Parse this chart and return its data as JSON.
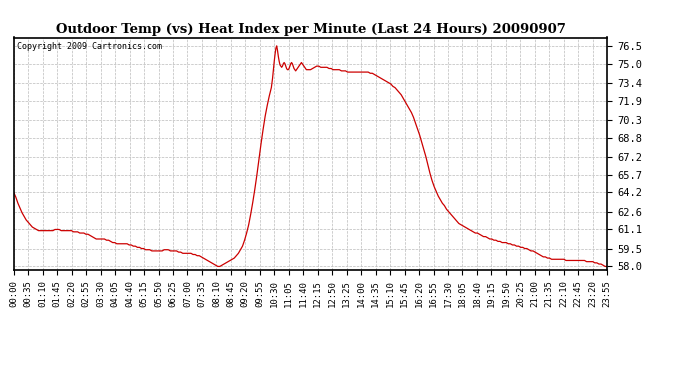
{
  "title": "Outdoor Temp (vs) Heat Index per Minute (Last 24 Hours) 20090907",
  "copyright_text": "Copyright 2009 Cartronics.com",
  "line_color": "#cc0000",
  "background_color": "#ffffff",
  "plot_bg_color": "#ffffff",
  "grid_color": "#bbbbbb",
  "y_ticks": [
    58.0,
    59.5,
    61.1,
    62.6,
    64.2,
    65.7,
    67.2,
    68.8,
    70.3,
    71.9,
    73.4,
    75.0,
    76.5
  ],
  "ylim": [
    57.7,
    77.2
  ],
  "x_tick_labels": [
    "00:00",
    "00:35",
    "01:10",
    "01:45",
    "02:20",
    "02:55",
    "03:30",
    "04:05",
    "04:40",
    "05:15",
    "05:50",
    "06:25",
    "07:00",
    "07:35",
    "08:10",
    "08:45",
    "09:20",
    "09:55",
    "10:30",
    "11:05",
    "11:40",
    "12:15",
    "12:50",
    "13:25",
    "14:00",
    "14:35",
    "15:10",
    "15:45",
    "16:20",
    "16:55",
    "17:30",
    "18:05",
    "18:40",
    "19:15",
    "19:50",
    "20:25",
    "21:00",
    "21:35",
    "22:10",
    "22:45",
    "23:20",
    "23:55"
  ],
  "curve_points": [
    [
      0,
      64.2
    ],
    [
      5,
      63.8
    ],
    [
      10,
      63.3
    ],
    [
      15,
      62.9
    ],
    [
      20,
      62.5
    ],
    [
      25,
      62.2
    ],
    [
      30,
      61.9
    ],
    [
      35,
      61.7
    ],
    [
      40,
      61.5
    ],
    [
      45,
      61.3
    ],
    [
      50,
      61.2
    ],
    [
      55,
      61.1
    ],
    [
      60,
      61.0
    ],
    [
      65,
      61.0
    ],
    [
      70,
      61.0
    ],
    [
      75,
      61.0
    ],
    [
      80,
      61.0
    ],
    [
      85,
      61.0
    ],
    [
      90,
      61.0
    ],
    [
      95,
      61.0
    ],
    [
      100,
      61.1
    ],
    [
      105,
      61.1
    ],
    [
      110,
      61.1
    ],
    [
      115,
      61.0
    ],
    [
      120,
      61.0
    ],
    [
      125,
      61.0
    ],
    [
      130,
      61.0
    ],
    [
      135,
      61.0
    ],
    [
      140,
      61.0
    ],
    [
      145,
      60.9
    ],
    [
      150,
      60.9
    ],
    [
      155,
      60.9
    ],
    [
      160,
      60.8
    ],
    [
      165,
      60.8
    ],
    [
      170,
      60.8
    ],
    [
      175,
      60.7
    ],
    [
      180,
      60.7
    ],
    [
      185,
      60.6
    ],
    [
      190,
      60.5
    ],
    [
      195,
      60.4
    ],
    [
      200,
      60.3
    ],
    [
      205,
      60.3
    ],
    [
      210,
      60.3
    ],
    [
      215,
      60.3
    ],
    [
      220,
      60.3
    ],
    [
      225,
      60.2
    ],
    [
      230,
      60.2
    ],
    [
      235,
      60.1
    ],
    [
      240,
      60.0
    ],
    [
      245,
      60.0
    ],
    [
      250,
      59.9
    ],
    [
      255,
      59.9
    ],
    [
      260,
      59.9
    ],
    [
      265,
      59.9
    ],
    [
      270,
      59.9
    ],
    [
      275,
      59.9
    ],
    [
      280,
      59.8
    ],
    [
      285,
      59.8
    ],
    [
      290,
      59.7
    ],
    [
      295,
      59.7
    ],
    [
      300,
      59.6
    ],
    [
      305,
      59.6
    ],
    [
      310,
      59.5
    ],
    [
      315,
      59.5
    ],
    [
      320,
      59.4
    ],
    [
      325,
      59.4
    ],
    [
      330,
      59.4
    ],
    [
      335,
      59.3
    ],
    [
      340,
      59.3
    ],
    [
      345,
      59.3
    ],
    [
      350,
      59.3
    ],
    [
      355,
      59.3
    ],
    [
      360,
      59.3
    ],
    [
      365,
      59.4
    ],
    [
      370,
      59.4
    ],
    [
      375,
      59.4
    ],
    [
      380,
      59.3
    ],
    [
      385,
      59.3
    ],
    [
      390,
      59.3
    ],
    [
      395,
      59.3
    ],
    [
      400,
      59.2
    ],
    [
      405,
      59.2
    ],
    [
      410,
      59.1
    ],
    [
      415,
      59.1
    ],
    [
      420,
      59.1
    ],
    [
      425,
      59.1
    ],
    [
      430,
      59.1
    ],
    [
      435,
      59.0
    ],
    [
      440,
      59.0
    ],
    [
      445,
      58.9
    ],
    [
      450,
      58.9
    ],
    [
      455,
      58.8
    ],
    [
      460,
      58.7
    ],
    [
      465,
      58.6
    ],
    [
      470,
      58.5
    ],
    [
      475,
      58.4
    ],
    [
      480,
      58.3
    ],
    [
      485,
      58.2
    ],
    [
      490,
      58.1
    ],
    [
      495,
      58.0
    ],
    [
      500,
      58.0
    ],
    [
      505,
      58.1
    ],
    [
      510,
      58.2
    ],
    [
      515,
      58.3
    ],
    [
      520,
      58.4
    ],
    [
      525,
      58.5
    ],
    [
      530,
      58.6
    ],
    [
      535,
      58.7
    ],
    [
      540,
      58.9
    ],
    [
      545,
      59.1
    ],
    [
      550,
      59.4
    ],
    [
      555,
      59.7
    ],
    [
      560,
      60.2
    ],
    [
      565,
      60.8
    ],
    [
      570,
      61.5
    ],
    [
      575,
      62.4
    ],
    [
      580,
      63.4
    ],
    [
      585,
      64.5
    ],
    [
      590,
      65.7
    ],
    [
      595,
      67.0
    ],
    [
      600,
      68.3
    ],
    [
      605,
      69.5
    ],
    [
      610,
      70.6
    ],
    [
      615,
      71.5
    ],
    [
      620,
      72.3
    ],
    [
      625,
      73.0
    ],
    [
      628,
      73.8
    ],
    [
      630,
      74.5
    ],
    [
      632,
      75.2
    ],
    [
      634,
      75.8
    ],
    [
      636,
      76.3
    ],
    [
      638,
      76.5
    ],
    [
      640,
      76.1
    ],
    [
      642,
      75.6
    ],
    [
      644,
      75.2
    ],
    [
      646,
      74.9
    ],
    [
      648,
      74.8
    ],
    [
      650,
      74.7
    ],
    [
      652,
      74.8
    ],
    [
      654,
      75.0
    ],
    [
      656,
      75.1
    ],
    [
      658,
      75.0
    ],
    [
      660,
      74.8
    ],
    [
      662,
      74.6
    ],
    [
      664,
      74.5
    ],
    [
      666,
      74.5
    ],
    [
      668,
      74.6
    ],
    [
      670,
      74.8
    ],
    [
      672,
      75.0
    ],
    [
      674,
      75.1
    ],
    [
      676,
      75.0
    ],
    [
      678,
      74.8
    ],
    [
      680,
      74.6
    ],
    [
      682,
      74.5
    ],
    [
      684,
      74.4
    ],
    [
      686,
      74.5
    ],
    [
      688,
      74.6
    ],
    [
      690,
      74.7
    ],
    [
      692,
      74.8
    ],
    [
      694,
      74.9
    ],
    [
      696,
      75.0
    ],
    [
      698,
      75.1
    ],
    [
      700,
      75.0
    ],
    [
      702,
      74.9
    ],
    [
      704,
      74.8
    ],
    [
      706,
      74.7
    ],
    [
      708,
      74.6
    ],
    [
      710,
      74.5
    ],
    [
      715,
      74.5
    ],
    [
      720,
      74.5
    ],
    [
      725,
      74.6
    ],
    [
      730,
      74.7
    ],
    [
      735,
      74.8
    ],
    [
      740,
      74.8
    ],
    [
      745,
      74.7
    ],
    [
      750,
      74.7
    ],
    [
      755,
      74.7
    ],
    [
      760,
      74.7
    ],
    [
      765,
      74.6
    ],
    [
      770,
      74.6
    ],
    [
      775,
      74.5
    ],
    [
      780,
      74.5
    ],
    [
      785,
      74.5
    ],
    [
      790,
      74.5
    ],
    [
      795,
      74.4
    ],
    [
      800,
      74.4
    ],
    [
      805,
      74.4
    ],
    [
      810,
      74.3
    ],
    [
      815,
      74.3
    ],
    [
      820,
      74.3
    ],
    [
      825,
      74.3
    ],
    [
      830,
      74.3
    ],
    [
      835,
      74.3
    ],
    [
      840,
      74.3
    ],
    [
      845,
      74.3
    ],
    [
      850,
      74.3
    ],
    [
      855,
      74.3
    ],
    [
      860,
      74.3
    ],
    [
      865,
      74.2
    ],
    [
      870,
      74.2
    ],
    [
      875,
      74.1
    ],
    [
      880,
      74.0
    ],
    [
      885,
      73.9
    ],
    [
      890,
      73.8
    ],
    [
      895,
      73.7
    ],
    [
      900,
      73.6
    ],
    [
      905,
      73.5
    ],
    [
      910,
      73.4
    ],
    [
      915,
      73.3
    ],
    [
      920,
      73.1
    ],
    [
      925,
      73.0
    ],
    [
      930,
      72.8
    ],
    [
      935,
      72.6
    ],
    [
      940,
      72.4
    ],
    [
      945,
      72.1
    ],
    [
      950,
      71.8
    ],
    [
      955,
      71.5
    ],
    [
      960,
      71.2
    ],
    [
      965,
      70.9
    ],
    [
      970,
      70.5
    ],
    [
      975,
      70.0
    ],
    [
      980,
      69.5
    ],
    [
      985,
      69.0
    ],
    [
      990,
      68.4
    ],
    [
      995,
      67.8
    ],
    [
      1000,
      67.2
    ],
    [
      1005,
      66.5
    ],
    [
      1010,
      65.8
    ],
    [
      1015,
      65.2
    ],
    [
      1020,
      64.7
    ],
    [
      1025,
      64.3
    ],
    [
      1030,
      63.9
    ],
    [
      1035,
      63.6
    ],
    [
      1040,
      63.3
    ],
    [
      1045,
      63.1
    ],
    [
      1050,
      62.8
    ],
    [
      1055,
      62.6
    ],
    [
      1060,
      62.4
    ],
    [
      1065,
      62.2
    ],
    [
      1070,
      62.0
    ],
    [
      1075,
      61.8
    ],
    [
      1080,
      61.6
    ],
    [
      1085,
      61.5
    ],
    [
      1090,
      61.4
    ],
    [
      1095,
      61.3
    ],
    [
      1100,
      61.2
    ],
    [
      1105,
      61.1
    ],
    [
      1110,
      61.0
    ],
    [
      1115,
      60.9
    ],
    [
      1120,
      60.8
    ],
    [
      1125,
      60.8
    ],
    [
      1130,
      60.7
    ],
    [
      1135,
      60.6
    ],
    [
      1140,
      60.5
    ],
    [
      1145,
      60.5
    ],
    [
      1150,
      60.4
    ],
    [
      1155,
      60.3
    ],
    [
      1160,
      60.3
    ],
    [
      1165,
      60.2
    ],
    [
      1170,
      60.2
    ],
    [
      1175,
      60.1
    ],
    [
      1180,
      60.1
    ],
    [
      1185,
      60.0
    ],
    [
      1190,
      60.0
    ],
    [
      1195,
      60.0
    ],
    [
      1200,
      59.9
    ],
    [
      1205,
      59.9
    ],
    [
      1210,
      59.8
    ],
    [
      1215,
      59.8
    ],
    [
      1220,
      59.7
    ],
    [
      1225,
      59.7
    ],
    [
      1230,
      59.6
    ],
    [
      1235,
      59.6
    ],
    [
      1240,
      59.5
    ],
    [
      1245,
      59.5
    ],
    [
      1250,
      59.4
    ],
    [
      1255,
      59.3
    ],
    [
      1260,
      59.3
    ],
    [
      1265,
      59.2
    ],
    [
      1270,
      59.1
    ],
    [
      1275,
      59.0
    ],
    [
      1280,
      58.9
    ],
    [
      1285,
      58.8
    ],
    [
      1290,
      58.8
    ],
    [
      1295,
      58.7
    ],
    [
      1300,
      58.7
    ],
    [
      1305,
      58.6
    ],
    [
      1310,
      58.6
    ],
    [
      1315,
      58.6
    ],
    [
      1320,
      58.6
    ],
    [
      1325,
      58.6
    ],
    [
      1330,
      58.6
    ],
    [
      1335,
      58.6
    ],
    [
      1340,
      58.5
    ],
    [
      1345,
      58.5
    ],
    [
      1350,
      58.5
    ],
    [
      1355,
      58.5
    ],
    [
      1360,
      58.5
    ],
    [
      1365,
      58.5
    ],
    [
      1370,
      58.5
    ],
    [
      1375,
      58.5
    ],
    [
      1380,
      58.5
    ],
    [
      1385,
      58.5
    ],
    [
      1390,
      58.4
    ],
    [
      1395,
      58.4
    ],
    [
      1400,
      58.4
    ],
    [
      1405,
      58.4
    ],
    [
      1410,
      58.3
    ],
    [
      1415,
      58.3
    ],
    [
      1420,
      58.2
    ],
    [
      1425,
      58.2
    ],
    [
      1430,
      58.1
    ],
    [
      1435,
      58.0
    ],
    [
      1439,
      58.0
    ]
  ]
}
